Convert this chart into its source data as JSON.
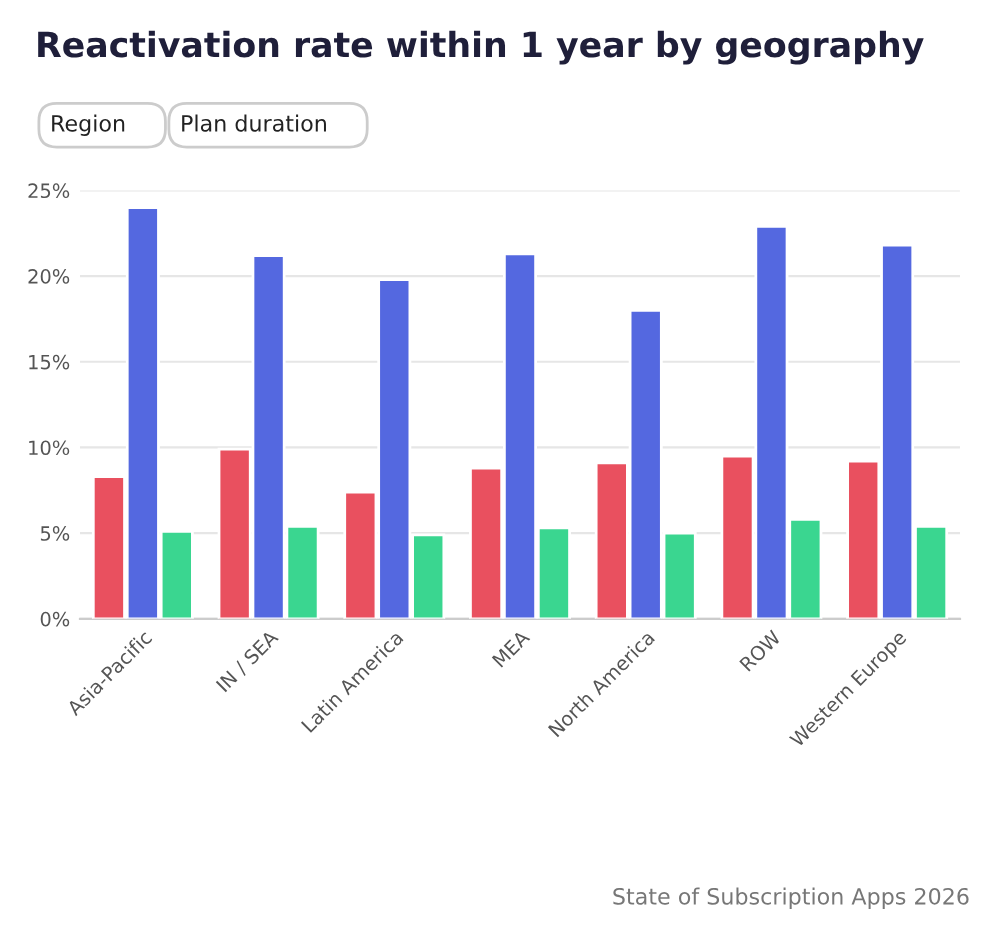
{
  "chart_data": {
    "type": "bar",
    "title": "Reactivation rate within 1 year by geography",
    "categories": [
      "Asia-Pacific",
      "IN / SEA",
      "Latin America",
      "MEA",
      "North America",
      "ROW",
      "Western Europe"
    ],
    "series": [
      {
        "color": "#e9505f",
        "values": [
          8.3,
          9.9,
          7.4,
          8.8,
          9.1,
          9.5,
          9.2
        ]
      },
      {
        "color": "#5468e0",
        "values": [
          24.0,
          21.2,
          19.8,
          21.3,
          18.0,
          22.9,
          21.8
        ]
      },
      {
        "color": "#3ad690",
        "values": [
          5.1,
          5.4,
          4.9,
          5.3,
          5.0,
          5.8,
          5.4
        ]
      }
    ],
    "ylim": [
      0,
      25
    ],
    "yticks": [
      {
        "value": 0,
        "label": "0%"
      },
      {
        "value": 5,
        "label": "5%"
      },
      {
        "value": 10,
        "label": "10%"
      },
      {
        "value": 15,
        "label": "15%"
      },
      {
        "value": 20,
        "label": "20%"
      },
      {
        "value": 25,
        "label": "25%"
      }
    ],
    "grid": "y",
    "annotations": [
      "Region",
      "Plan duration",
      "State of Subscription Apps 2026"
    ]
  }
}
